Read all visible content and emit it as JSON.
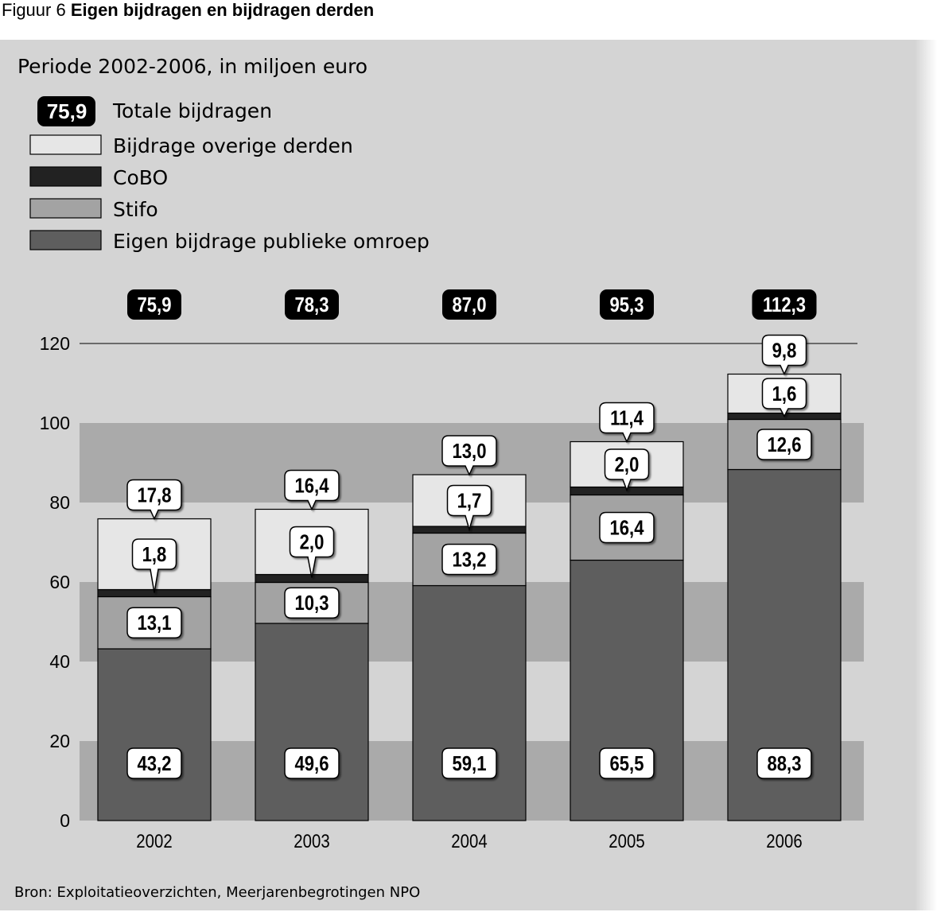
{
  "figure": {
    "number": "Figuur 6",
    "title": "Eigen bijdragen en bijdragen derden"
  },
  "source": "Bron: Exploitatieoverzichten, Meerjarenbegrotingen NPO",
  "colors": {
    "third": "#e6e6e6",
    "cobo": "#222222",
    "stifo": "#a3a3a3",
    "eigen": "#5e5e5e",
    "band_dark": "#aaaaaa",
    "band_light": "#d4d4d4",
    "panel": "#d4d4d4"
  },
  "chart_data": {
    "type": "bar",
    "stacked": true,
    "subtitle": "Periode 2002-2006, in miljoen euro",
    "categories": [
      "2002",
      "2003",
      "2004",
      "2005",
      "2006"
    ],
    "series": [
      {
        "key": "eigen",
        "name": "Eigen bijdrage publieke omroep",
        "values": [
          43.2,
          49.6,
          59.1,
          65.5,
          88.3
        ],
        "labels": [
          "43,2",
          "49,6",
          "59,1",
          "65,5",
          "88,3"
        ]
      },
      {
        "key": "stifo",
        "name": "Stifo",
        "values": [
          13.1,
          10.3,
          13.2,
          16.4,
          12.6
        ],
        "labels": [
          "13,1",
          "10,3",
          "13,2",
          "16,4",
          "12,6"
        ]
      },
      {
        "key": "cobo",
        "name": "CoBO",
        "values": [
          1.8,
          2.0,
          1.7,
          2.0,
          1.6
        ],
        "labels": [
          "1,8",
          "2,0",
          "1,7",
          "2,0",
          "1,6"
        ]
      },
      {
        "key": "third",
        "name": "Bijdrage overige derden",
        "values": [
          17.8,
          16.4,
          13.0,
          11.4,
          9.8
        ],
        "labels": [
          "17,8",
          "16,4",
          "13,0",
          "11,4",
          "9,8"
        ]
      }
    ],
    "totals": {
      "name": "Totale bijdragen",
      "legend_sample": "75,9",
      "values": [
        75.9,
        78.3,
        87.0,
        95.3,
        112.3
      ],
      "labels": [
        "75,9",
        "78,3",
        "87,0",
        "95,3",
        "112,3"
      ]
    },
    "legend_order": [
      "third",
      "cobo",
      "stifo",
      "eigen"
    ],
    "yticks": [
      0,
      20,
      40,
      60,
      80,
      100,
      120
    ],
    "ylim": [
      0,
      120
    ],
    "xlabel": "",
    "ylabel": "",
    "legend_position": "top-left"
  }
}
